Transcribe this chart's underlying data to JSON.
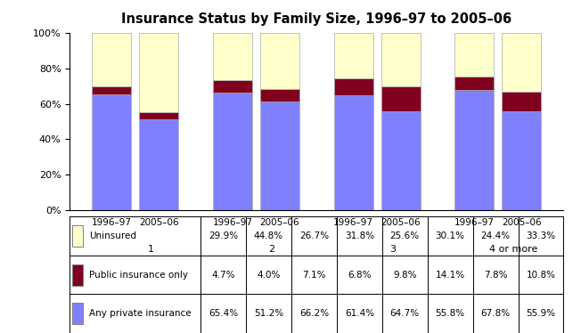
{
  "title": "Insurance Status by Family Size, 1996–97 to 2005–06",
  "groups": [
    "1",
    "2",
    "3",
    "4 or more"
  ],
  "years": [
    "1996–97",
    "2005–06"
  ],
  "any_private": [
    65.4,
    51.2,
    66.2,
    61.4,
    64.7,
    55.8,
    67.8,
    55.9
  ],
  "public_only": [
    4.7,
    4.0,
    7.1,
    6.8,
    9.8,
    14.1,
    7.8,
    10.8
  ],
  "uninsured": [
    29.9,
    44.8,
    26.7,
    31.8,
    25.6,
    30.1,
    24.4,
    33.3
  ],
  "color_private": "#8080ff",
  "color_public": "#800020",
  "color_uninsured": "#ffffcc",
  "bar_width": 0.6,
  "ylim": [
    0,
    100
  ],
  "yticks": [
    0,
    20,
    40,
    60,
    80,
    100
  ],
  "ytick_labels": [
    "0%",
    "20%",
    "40%",
    "60%",
    "80%",
    "100%"
  ],
  "legend_labels": [
    "Uninsured",
    "Public insurance only",
    "Any private insurance"
  ],
  "table_rows": {
    "Uninsured": [
      "29.9%",
      "44.8%",
      "26.7%",
      "31.8%",
      "25.6%",
      "30.1%",
      "24.4%",
      "33.3%"
    ],
    "Public insurance only": [
      "4.7%",
      "4.0%",
      "7.1%",
      "6.8%",
      "9.8%",
      "14.1%",
      "7.8%",
      "10.8%"
    ],
    "Any private insurance": [
      "65.4%",
      "51.2%",
      "66.2%",
      "61.4%",
      "64.7%",
      "55.8%",
      "67.8%",
      "55.9%"
    ]
  }
}
